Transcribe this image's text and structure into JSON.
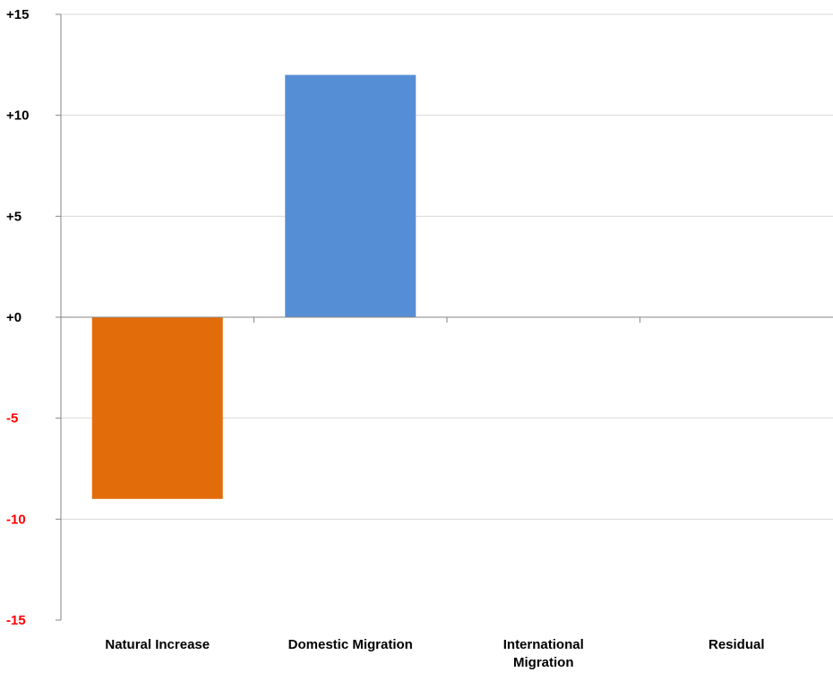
{
  "chart_data": {
    "type": "bar",
    "categories": [
      "Natural Increase",
      "Domestic Migration",
      "International Migration",
      "Residual"
    ],
    "category_label_lines": [
      [
        "Natural Increase"
      ],
      [
        "Domestic Migration"
      ],
      [
        "International",
        "Migration"
      ],
      [
        "Residual"
      ]
    ],
    "values": [
      -9,
      12,
      0,
      0
    ],
    "bar_colors": [
      "#e36c0a",
      "#558ed5",
      "#558ed5",
      "#558ed5"
    ],
    "ylim": [
      -15,
      15
    ],
    "yticks": [
      15,
      10,
      5,
      0,
      -5,
      -10,
      -15
    ],
    "ytick_labels": [
      "+15",
      "+10",
      "+5",
      "+0",
      "-5",
      "-10",
      "-15"
    ],
    "positive_label_color": "#000000",
    "negative_label_color": "#ff0000",
    "grid": true,
    "gridline_color": "#d9d9d9",
    "axis_color": "#868686",
    "title": "",
    "xlabel": "",
    "ylabel": ""
  }
}
